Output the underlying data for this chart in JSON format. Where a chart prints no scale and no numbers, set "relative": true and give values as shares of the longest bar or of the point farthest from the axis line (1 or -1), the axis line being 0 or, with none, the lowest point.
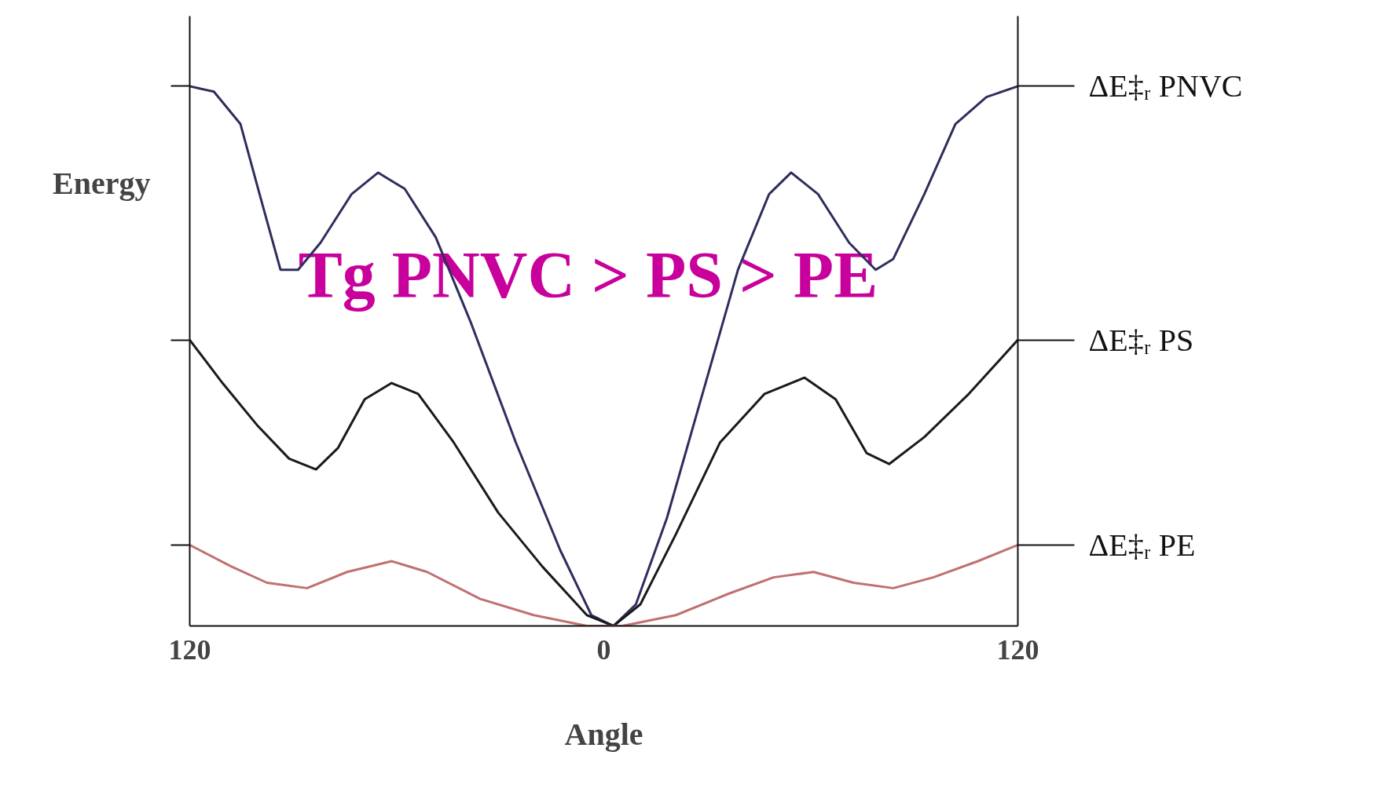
{
  "chart_data": {
    "type": "line",
    "relative": true,
    "xlabel": "Angle",
    "ylabel": "Energy",
    "xlim": [
      -120,
      120
    ],
    "xticks": [
      {
        "value": -120,
        "label": "120"
      },
      0,
      {
        "value": 120,
        "label": "120"
      }
    ],
    "series": [
      {
        "color": "#2e2e5e",
        "x": [
          -120,
          -113.0,
          -105.3,
          -98.9,
          -93.7,
          -88.6,
          -82.1,
          -73.1,
          -65.4,
          -57.7,
          -48.7,
          -38.4,
          -25.5,
          -12.6,
          -3.6,
          2.8,
          9.3,
          18.3,
          28.6,
          38.9,
          47.9,
          54.3,
          62.1,
          71.1,
          78.8,
          83.9,
          92.9,
          101.9,
          110.9,
          120
        ],
        "values": [
          1.0,
          0.99,
          0.93,
          0.78,
          0.66,
          0.66,
          0.71,
          0.8,
          0.84,
          0.81,
          0.72,
          0.56,
          0.34,
          0.14,
          0.02,
          0,
          0.04,
          0.2,
          0.43,
          0.66,
          0.8,
          0.84,
          0.8,
          0.71,
          0.66,
          0.68,
          0.8,
          0.93,
          0.98,
          1.0
        ]
      },
      {
        "color": "#1a1a1a",
        "x": [
          -120,
          -110.5,
          -100.2,
          -91.2,
          -83.4,
          -77.0,
          -69.3,
          -61.5,
          -53.8,
          -43.5,
          -30.6,
          -17.8,
          -4.9,
          2.8,
          10.6,
          20.9,
          33.7,
          46.6,
          58.2,
          67.2,
          76.2,
          82.7,
          92.9,
          105.8,
          120
        ],
        "values": [
          0.53,
          0.45,
          0.37,
          0.31,
          0.29,
          0.33,
          0.42,
          0.45,
          0.43,
          0.34,
          0.21,
          0.11,
          0.02,
          0,
          0.04,
          0.17,
          0.34,
          0.43,
          0.46,
          0.42,
          0.32,
          0.3,
          0.35,
          0.43,
          0.53
        ]
      },
      {
        "color": "#c07070",
        "x": [
          -120,
          -107.9,
          -97.6,
          -86.0,
          -74.4,
          -61.5,
          -51.2,
          -35.8,
          -20.3,
          -4.9,
          5.4,
          20.9,
          36.3,
          49.2,
          60.8,
          72.4,
          83.9,
          95.5,
          108.4,
          120
        ],
        "values": [
          0.15,
          0.11,
          0.08,
          0.07,
          0.1,
          0.12,
          0.1,
          0.05,
          0.02,
          0.0,
          0.0,
          0.02,
          0.06,
          0.09,
          0.1,
          0.08,
          0.07,
          0.09,
          0.12,
          0.15
        ]
      }
    ],
    "ref_lines": [
      {
        "axis": "y",
        "value": 1.0,
        "label": "ΔE‡ᵣ   PNVC"
      },
      {
        "axis": "y",
        "value": 0.53,
        "label": "ΔE‡ᵣ   PS"
      },
      {
        "axis": "y",
        "value": 0.15,
        "label": "ΔE‡ᵣ   PE"
      }
    ],
    "annotations": [
      "Tg  PNVC >  PS  >  PE"
    ]
  }
}
